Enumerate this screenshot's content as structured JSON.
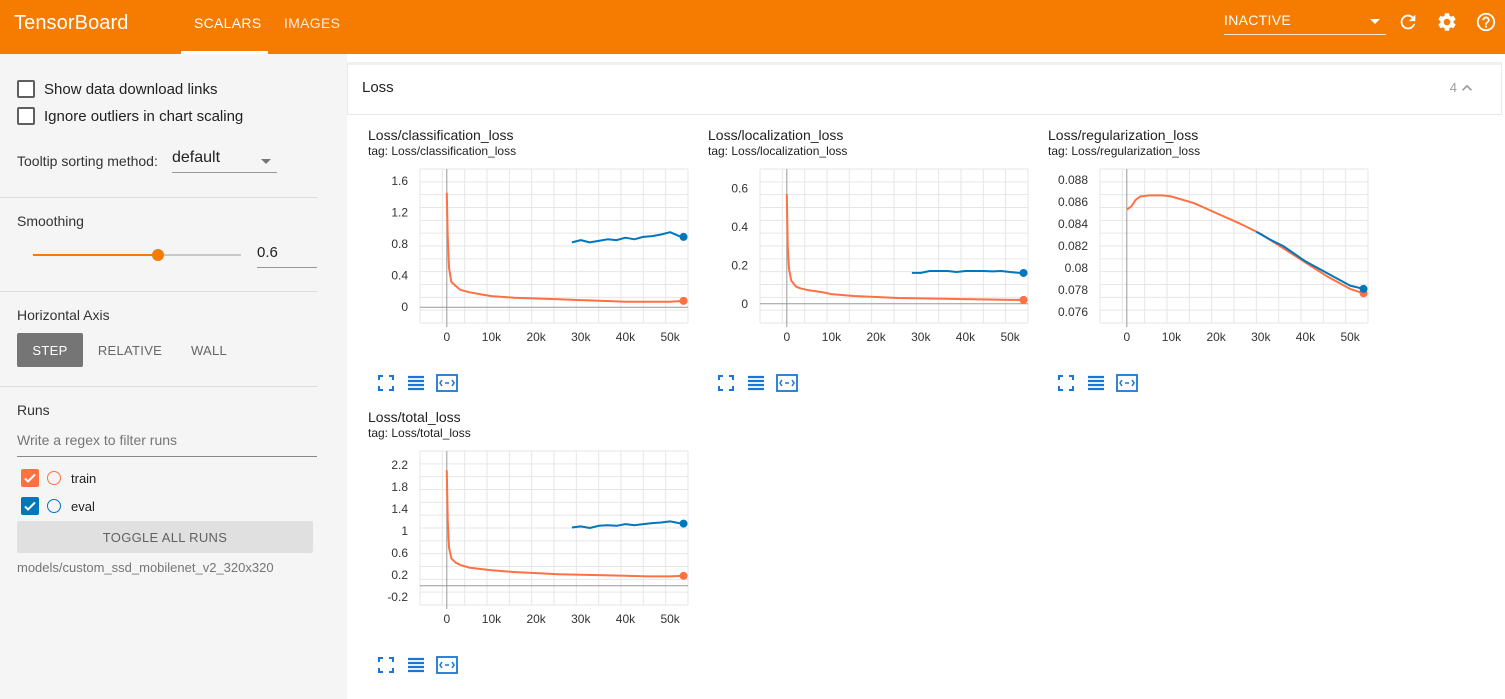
{
  "app": {
    "title": "TensorBoard"
  },
  "tabs": [
    {
      "label": "SCALARS",
      "active": true
    },
    {
      "label": "IMAGES",
      "active": false
    }
  ],
  "toolbar": {
    "run_selector": "INACTIVE",
    "icons": [
      "refresh-icon",
      "settings-icon",
      "help-icon"
    ]
  },
  "sidebar": {
    "show_download_links": "Show data download links",
    "ignore_outliers": "Ignore outliers in chart scaling",
    "tooltip_sort_label": "Tooltip sorting method:",
    "tooltip_sort_value": "default",
    "smoothing_label": "Smoothing",
    "smoothing_value": "0.6",
    "smoothing_fraction": 0.6,
    "horizontal_axis_label": "Horizontal Axis",
    "axis_options": [
      {
        "label": "STEP",
        "active": true
      },
      {
        "label": "RELATIVE",
        "active": false
      },
      {
        "label": "WALL",
        "active": false
      }
    ],
    "runs_label": "Runs",
    "filter_placeholder": "Write a regex to filter runs",
    "runs": [
      {
        "name": "train",
        "checked": true,
        "color": "#ff7043"
      },
      {
        "name": "eval",
        "checked": true,
        "color": "#0077bb"
      }
    ],
    "toggle_all": "TOGGLE ALL RUNS",
    "logdir": "models/custom_ssd_mobilenet_v2_320x320"
  },
  "pane": {
    "title": "Loss",
    "count": "4"
  },
  "colors": {
    "accent": "#f57c00",
    "train": "#ff7043",
    "eval": "#0077bb"
  },
  "chart_data": [
    {
      "type": "line",
      "title": "Loss/classification_loss",
      "tag": "tag: Loss/classification_loss",
      "x_ticks": [
        0,
        10000,
        20000,
        30000,
        40000,
        50000
      ],
      "x_tick_labels": [
        "0",
        "10k",
        "20k",
        "30k",
        "40k",
        "50k"
      ],
      "y_ticks": [
        0,
        0.4,
        0.8,
        1.2,
        1.6
      ],
      "y_tick_labels": [
        "0",
        "0.4",
        "0.8",
        "1.2",
        "1.6"
      ],
      "xlim": [
        -6000,
        54000
      ],
      "ylim": [
        -0.2,
        1.75
      ],
      "series": [
        {
          "name": "train",
          "color": "#ff7043",
          "x": [
            0,
            200,
            500,
            1000,
            2000,
            3000,
            5000,
            8000,
            10000,
            15000,
            20000,
            25000,
            30000,
            35000,
            40000,
            45000,
            50000,
            53000
          ],
          "y": [
            1.45,
            0.9,
            0.5,
            0.32,
            0.27,
            0.22,
            0.19,
            0.16,
            0.14,
            0.12,
            0.11,
            0.1,
            0.09,
            0.08,
            0.07,
            0.07,
            0.07,
            0.08
          ]
        },
        {
          "name": "eval",
          "color": "#0077bb",
          "x": [
            28000,
            30000,
            32000,
            34000,
            36000,
            38000,
            40000,
            42000,
            44000,
            46000,
            48000,
            50000,
            52000,
            53000
          ],
          "y": [
            0.82,
            0.85,
            0.82,
            0.84,
            0.86,
            0.85,
            0.88,
            0.86,
            0.89,
            0.9,
            0.92,
            0.95,
            0.9,
            0.89
          ]
        }
      ]
    },
    {
      "type": "line",
      "title": "Loss/localization_loss",
      "tag": "tag: Loss/localization_loss",
      "x_ticks": [
        0,
        10000,
        20000,
        30000,
        40000,
        50000
      ],
      "x_tick_labels": [
        "0",
        "10k",
        "20k",
        "30k",
        "40k",
        "50k"
      ],
      "y_ticks": [
        0,
        0.2,
        0.4,
        0.6
      ],
      "y_tick_labels": [
        "0",
        "0.2",
        "0.4",
        "0.6"
      ],
      "xlim": [
        -6000,
        54000
      ],
      "ylim": [
        -0.1,
        0.7
      ],
      "series": [
        {
          "name": "train",
          "color": "#ff7043",
          "x": [
            0,
            200,
            500,
            1000,
            2000,
            3000,
            5000,
            8000,
            10000,
            15000,
            20000,
            25000,
            30000,
            35000,
            40000,
            45000,
            50000,
            53000
          ],
          "y": [
            0.57,
            0.3,
            0.18,
            0.12,
            0.09,
            0.08,
            0.07,
            0.06,
            0.05,
            0.04,
            0.035,
            0.03,
            0.028,
            0.026,
            0.024,
            0.022,
            0.02,
            0.02
          ]
        },
        {
          "name": "eval",
          "color": "#0077bb",
          "x": [
            28000,
            30000,
            32000,
            34000,
            36000,
            38000,
            40000,
            42000,
            44000,
            46000,
            48000,
            50000,
            52000,
            53000
          ],
          "y": [
            0.16,
            0.16,
            0.17,
            0.17,
            0.17,
            0.165,
            0.17,
            0.17,
            0.17,
            0.168,
            0.17,
            0.165,
            0.16,
            0.16
          ]
        }
      ]
    },
    {
      "type": "line",
      "title": "Loss/regularization_loss",
      "tag": "tag: Loss/regularization_loss",
      "x_ticks": [
        0,
        10000,
        20000,
        30000,
        40000,
        50000
      ],
      "x_tick_labels": [
        "0",
        "10k",
        "20k",
        "30k",
        "40k",
        "50k"
      ],
      "y_ticks": [
        0.076,
        0.078,
        0.08,
        0.082,
        0.084,
        0.086,
        0.088
      ],
      "y_tick_labels": [
        "0.076",
        "0.078",
        "0.08",
        "0.082",
        "0.084",
        "0.086",
        "0.088"
      ],
      "xlim": [
        -6000,
        54000
      ],
      "ylim": [
        0.075,
        0.089
      ],
      "series": [
        {
          "name": "train",
          "color": "#ff7043",
          "x": [
            0,
            1000,
            2000,
            3000,
            5000,
            8000,
            10000,
            15000,
            20000,
            25000,
            30000,
            35000,
            40000,
            45000,
            50000,
            53000
          ],
          "y": [
            0.0853,
            0.0856,
            0.0862,
            0.0865,
            0.0866,
            0.0866,
            0.0865,
            0.0859,
            0.085,
            0.0841,
            0.0831,
            0.0818,
            0.0805,
            0.0792,
            0.0781,
            0.0777
          ]
        },
        {
          "name": "eval",
          "color": "#0077bb",
          "x": [
            29000,
            32000,
            35000,
            40000,
            45000,
            50000,
            53000
          ],
          "y": [
            0.0833,
            0.0826,
            0.082,
            0.0806,
            0.0795,
            0.0784,
            0.0781
          ]
        }
      ]
    },
    {
      "type": "line",
      "title": "Loss/total_loss",
      "tag": "tag: Loss/total_loss",
      "x_ticks": [
        0,
        10000,
        20000,
        30000,
        40000,
        50000
      ],
      "x_tick_labels": [
        "0",
        "10k",
        "20k",
        "30k",
        "40k",
        "50k"
      ],
      "y_ticks": [
        -0.2,
        0.2,
        0.6,
        1,
        1.4,
        1.8,
        2.2
      ],
      "y_tick_labels": [
        "-0.2",
        "0.2",
        "0.6",
        "1",
        "1.4",
        "1.8",
        "2.2"
      ],
      "xlim": [
        -6000,
        54000
      ],
      "ylim": [
        -0.35,
        2.45
      ],
      "series": [
        {
          "name": "train",
          "color": "#ff7043",
          "x": [
            0,
            200,
            500,
            1000,
            2000,
            3000,
            5000,
            8000,
            10000,
            15000,
            20000,
            25000,
            30000,
            35000,
            40000,
            45000,
            50000,
            53000
          ],
          "y": [
            2.1,
            1.2,
            0.7,
            0.5,
            0.42,
            0.38,
            0.33,
            0.3,
            0.28,
            0.25,
            0.23,
            0.21,
            0.2,
            0.19,
            0.18,
            0.17,
            0.17,
            0.18
          ]
        },
        {
          "name": "eval",
          "color": "#0077bb",
          "x": [
            28000,
            30000,
            32000,
            34000,
            36000,
            38000,
            40000,
            42000,
            44000,
            46000,
            48000,
            50000,
            52000,
            53000
          ],
          "y": [
            1.06,
            1.08,
            1.05,
            1.09,
            1.1,
            1.09,
            1.12,
            1.1,
            1.12,
            1.14,
            1.15,
            1.17,
            1.14,
            1.13
          ]
        }
      ]
    }
  ]
}
